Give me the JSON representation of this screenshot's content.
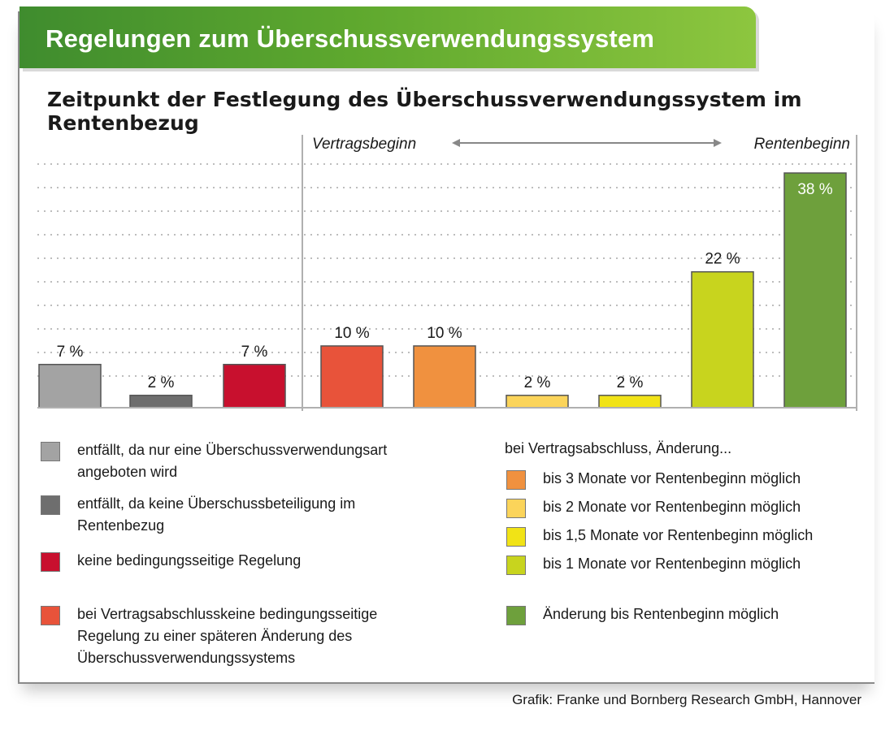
{
  "header": {
    "title": "Regelungen zum Überschussverwendungssystem",
    "subtitle": "Zeitpunkt der Festlegung des Überschussverwendungssystem im Rentenbezug"
  },
  "chart_data": {
    "type": "bar",
    "title": "Zeitpunkt der Festlegung des Überschussverwendungssystem im Rentenbezug",
    "axis_start_label": "Vertragsbeginn",
    "axis_end_label": "Rentenbeginn",
    "categories": [
      "entfällt, da nur eine Überschussverwendungsart angeboten wird",
      "entfällt, da keine Überschussbeteiligung im Rentenbezug",
      "keine bedingungsseitige Regelung",
      "bei Vertragsabschlusskeine bedingungsseitige Regelung zu einer späteren Änderung des Überschussverwendungssystems",
      "bis 3 Monate vor Rentenbeginn möglich",
      "bis 2 Monate vor Rentenbeginn möglich",
      "bis 1,5 Monate vor Rentenbeginn möglich",
      "bis 1 Monate vor Rentenbeginn möglich",
      "Änderung bis Rentenbeginn möglich"
    ],
    "values": [
      7,
      2,
      7,
      10,
      10,
      2,
      2,
      22,
      38
    ],
    "value_labels": [
      "7 %",
      "2 %",
      "7 %",
      "10 %",
      "10 %",
      "2 %",
      "2 %",
      "22 %",
      "38 %"
    ],
    "colors": [
      "#a3a3a3",
      "#6e6e6e",
      "#c8102e",
      "#e8533a",
      "#f0913f",
      "#fbd45a",
      "#f1e316",
      "#c8d41e",
      "#6ea03c"
    ],
    "ylim": [
      0,
      40
    ],
    "grid": true
  },
  "legend": {
    "left": [
      {
        "text": "entfällt, da nur eine Überschussverwendungsart angeboten wird",
        "color": "#a3a3a3"
      },
      {
        "text": "entfällt, da keine Überschussbeteiligung im Rentenbezug",
        "color": "#6e6e6e"
      },
      {
        "text": "keine bedingungsseitige Regelung",
        "color": "#c8102e"
      },
      {
        "text": "bei Vertragsabschlusskeine bedingungsseitige Regelung zu einer späteren Änderung des Überschussverwendungssystems",
        "color": "#e8533a"
      }
    ],
    "right_heading": "bei Vertragsabschluss, Änderung...",
    "right": [
      {
        "text": "bis 3 Monate vor Rentenbeginn möglich",
        "color": "#f0913f"
      },
      {
        "text": "bis 2 Monate vor Rentenbeginn möglich",
        "color": "#fbd45a"
      },
      {
        "text": "bis 1,5 Monate vor Rentenbeginn möglich",
        "color": "#f1e316"
      },
      {
        "text": "bis 1 Monate vor Rentenbeginn möglich",
        "color": "#c8d41e"
      },
      {
        "text": "Änderung bis Rentenbeginn möglich",
        "color": "#6ea03c"
      }
    ]
  },
  "source": "Grafik: Franke und Bornberg Research GmbH, Hannover"
}
